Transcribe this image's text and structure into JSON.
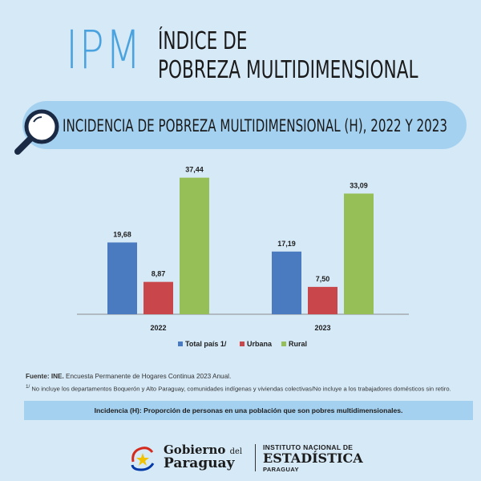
{
  "header": {
    "acronym": "IPM",
    "title_line1": "Índice de",
    "title_line2": "Pobreza multidimensional"
  },
  "banner": {
    "text": "Incidencia de pobreza multidimensional (H), 2022 y 2023"
  },
  "chart_data": {
    "type": "bar",
    "title": "Incidencia de pobreza multidimensional (H), 2022 y 2023",
    "categories": [
      "2022",
      "2023"
    ],
    "series": [
      {
        "name": "Total país 1/",
        "color": "#4a7bc0",
        "values": [
          19.68,
          17.19
        ],
        "labels": [
          "19,68",
          "17,19"
        ]
      },
      {
        "name": "Urbana",
        "color": "#c9474a",
        "values": [
          8.87,
          7.5
        ],
        "labels": [
          "8,87",
          "7,50"
        ]
      },
      {
        "name": "Rural",
        "color": "#97bf57",
        "values": [
          37.44,
          33.09
        ],
        "labels": [
          "37,44",
          "33,09"
        ]
      }
    ],
    "ylim": [
      0,
      40
    ],
    "xlabel": "",
    "ylabel": "",
    "grid": false,
    "legend": "bottom"
  },
  "footnotes": {
    "source_label": "Fuente: INE.",
    "source_text": " Encuesta Permanente de Hogares Continua 2023 Anual.",
    "note_marker": "1/",
    "note_text": " No incluye los departamentos Boquerón y Alto Paraguay, comunidades indígenas y viviendas colectivas/No incluye a los trabajadores domésticos sin retiro."
  },
  "definition": "Incidencia (H): Proporción de personas en una población que son pobres multidimensionales.",
  "logos": {
    "gob_line1": "Gobierno",
    "gob_del": "del",
    "gob_line2": "Paraguay",
    "ine_line1": "INSTITUTO NACIONAL DE",
    "ine_line2": "ESTADÍSTICA",
    "ine_line3": "PARAGUAY"
  }
}
